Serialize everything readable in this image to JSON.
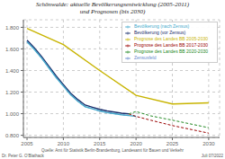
{
  "chart_data": {
    "type": "line",
    "title": "Schönwalde: aktuelle Bevölkerungsentwicklung (2005-2011)",
    "subtitle": "und Prognosen (bis 2030)",
    "annotations": [
      "Dr. Peter G. O’Blathack",
      "Quelle: Amt für Statistik Berlin-Brandenburg, Landesamt für Bauen und Verkehr",
      "Juli 07/2022"
    ],
    "xlim": [
      2004.5,
      2031.5
    ],
    "ylim": [
      780,
      1870
    ],
    "xticks": [
      2005,
      2010,
      2015,
      2020,
      2025,
      2030
    ],
    "yticks": [
      {
        "value": 800,
        "label": "0.800"
      },
      {
        "value": 1000,
        "label": "1.000"
      },
      {
        "value": 1200,
        "label": "1.200"
      },
      {
        "value": 1400,
        "label": "1.400"
      },
      {
        "value": 1600,
        "label": "1.600"
      },
      {
        "value": 1800,
        "label": "1.800"
      }
    ],
    "grid": true,
    "legend": "upper right",
    "series": [
      {
        "name": "Bevölkerung (vor Zensus)",
        "color": "#1a2d6b",
        "line_style": "solid",
        "x": [
          2005,
          2006,
          2007,
          2008,
          2009,
          2010,
          2011,
          2012,
          2013,
          2014,
          2015,
          2016,
          2017,
          2018,
          2019
        ],
        "values": [
          1680,
          1610,
          1530,
          1440,
          1350,
          1270,
          1190,
          1130,
          1080,
          1060,
          1040,
          1025,
          1015,
          1005,
          998
        ]
      },
      {
        "name": "Zensusfeld",
        "color": "#6688cc",
        "line_style": "dashed",
        "x": [
          2005,
          2006,
          2007,
          2008,
          2009,
          2010,
          2011,
          2012,
          2013,
          2014,
          2015,
          2016,
          2017,
          2018,
          2019
        ],
        "values": [
          1665,
          1595,
          1515,
          1425,
          1335,
          1255,
          1175,
          1115,
          1065,
          1045,
          1025,
          1010,
          1000,
          990,
          983
        ]
      },
      {
        "name": "Bevölkerung (nach Zensus)",
        "color": "#44aacc",
        "line_style": "solid",
        "x": [
          2005,
          2006,
          2007,
          2008,
          2009,
          2010,
          2011,
          2012,
          2013,
          2014,
          2015,
          2016,
          2017,
          2018,
          2019,
          2020
        ],
        "values": [
          1665,
          1595,
          1515,
          1425,
          1335,
          1255,
          1175,
          1115,
          1065,
          1045,
          1025,
          1010,
          1000,
          990,
          983,
          975
        ]
      },
      {
        "name": "Prognose des Landes BB 2005-2030",
        "color": "#c8b400",
        "line_style": "solid",
        "x": [
          2005,
          2010,
          2015,
          2020,
          2025,
          2030
        ],
        "values": [
          1790,
          1640,
          1400,
          1170,
          1090,
          1100
        ]
      },
      {
        "name": "Prognose des Landes BB 2017-2030",
        "color": "#990000",
        "line_style": "dashed",
        "x": [
          2019,
          2020,
          2022,
          2025,
          2030
        ],
        "values": [
          998,
          975,
          940,
          890,
          820
        ]
      },
      {
        "name": "Prognose des Landes BB 2020-2030",
        "color": "#228822",
        "line_style": "dashed",
        "x": [
          2019,
          2020,
          2022,
          2025,
          2030
        ],
        "values": [
          998,
          1020,
          980,
          940,
          870
        ]
      }
    ]
  }
}
